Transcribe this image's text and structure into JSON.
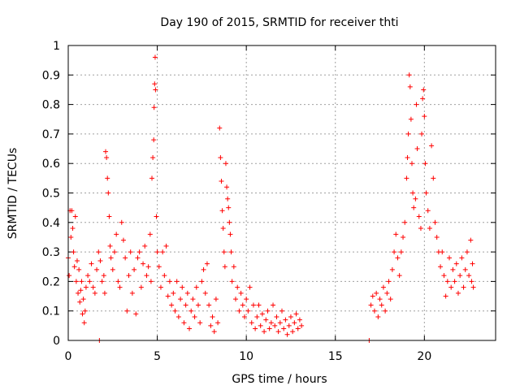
{
  "chart_data": {
    "type": "scatter",
    "title": "Day 190 of 2015, SRMTID for receiver thti",
    "xlabel": "GPS time / hours",
    "ylabel": "SRMTID / TECUs",
    "xlim": [
      0,
      24
    ],
    "ylim": [
      0,
      1
    ],
    "xticks": [
      0,
      5,
      10,
      15,
      20
    ],
    "xtick_labels": [
      "0",
      "5",
      "10",
      "15",
      "20"
    ],
    "yticks": [
      0,
      0.1,
      0.2,
      0.3,
      0.4,
      0.5,
      0.6,
      0.7,
      0.8,
      0.9,
      1
    ],
    "ytick_labels": [
      "0",
      "0.1",
      "0.2",
      "0.3",
      "0.4",
      "0.5",
      "0.6",
      "0.7",
      "0.8",
      "0.9",
      "1"
    ],
    "grid": true,
    "marker": "+",
    "color": "#ff0000",
    "series": [
      {
        "name": "SRMTID",
        "points": [
          [
            0.0,
            0.28
          ],
          [
            0.05,
            0.22
          ],
          [
            0.1,
            0.44
          ],
          [
            0.15,
            0.35
          ],
          [
            0.2,
            0.44
          ],
          [
            0.25,
            0.38
          ],
          [
            0.3,
            0.3
          ],
          [
            0.35,
            0.25
          ],
          [
            0.4,
            0.42
          ],
          [
            0.45,
            0.2
          ],
          [
            0.5,
            0.27
          ],
          [
            0.55,
            0.16
          ],
          [
            0.6,
            0.24
          ],
          [
            0.65,
            0.13
          ],
          [
            0.7,
            0.17
          ],
          [
            0.75,
            0.2
          ],
          [
            0.8,
            0.09
          ],
          [
            0.85,
            0.14
          ],
          [
            0.9,
            0.06
          ],
          [
            0.95,
            0.1
          ],
          [
            1.0,
            0.18
          ],
          [
            1.1,
            0.22
          ],
          [
            1.2,
            0.2
          ],
          [
            1.3,
            0.26
          ],
          [
            1.4,
            0.18
          ],
          [
            1.5,
            0.16
          ],
          [
            1.6,
            0.24
          ],
          [
            1.7,
            0.3
          ],
          [
            1.75,
            0.0
          ],
          [
            1.8,
            0.27
          ],
          [
            1.9,
            0.2
          ],
          [
            2.0,
            0.22
          ],
          [
            2.05,
            0.16
          ],
          [
            2.1,
            0.64
          ],
          [
            2.15,
            0.62
          ],
          [
            2.2,
            0.55
          ],
          [
            2.25,
            0.5
          ],
          [
            2.3,
            0.42
          ],
          [
            2.35,
            0.32
          ],
          [
            2.4,
            0.28
          ],
          [
            2.5,
            0.24
          ],
          [
            2.6,
            0.3
          ],
          [
            2.7,
            0.36
          ],
          [
            2.8,
            0.2
          ],
          [
            2.9,
            0.18
          ],
          [
            3.0,
            0.4
          ],
          [
            3.1,
            0.34
          ],
          [
            3.2,
            0.28
          ],
          [
            3.3,
            0.1
          ],
          [
            3.4,
            0.22
          ],
          [
            3.5,
            0.3
          ],
          [
            3.6,
            0.16
          ],
          [
            3.7,
            0.24
          ],
          [
            3.8,
            0.09
          ],
          [
            3.9,
            0.28
          ],
          [
            4.0,
            0.3
          ],
          [
            4.1,
            0.18
          ],
          [
            4.2,
            0.26
          ],
          [
            4.3,
            0.32
          ],
          [
            4.4,
            0.22
          ],
          [
            4.5,
            0.25
          ],
          [
            4.6,
            0.36
          ],
          [
            4.65,
            0.2
          ],
          [
            4.7,
            0.55
          ],
          [
            4.75,
            0.62
          ],
          [
            4.8,
            0.68
          ],
          [
            4.82,
            0.79
          ],
          [
            4.85,
            0.87
          ],
          [
            4.88,
            0.96
          ],
          [
            4.9,
            0.85
          ],
          [
            4.95,
            0.42
          ],
          [
            5.0,
            0.3
          ],
          [
            5.1,
            0.25
          ],
          [
            5.2,
            0.18
          ],
          [
            5.3,
            0.3
          ],
          [
            5.4,
            0.22
          ],
          [
            5.5,
            0.32
          ],
          [
            5.6,
            0.15
          ],
          [
            5.7,
            0.2
          ],
          [
            5.8,
            0.12
          ],
          [
            5.9,
            0.16
          ],
          [
            6.0,
            0.1
          ],
          [
            6.1,
            0.2
          ],
          [
            6.2,
            0.08
          ],
          [
            6.3,
            0.14
          ],
          [
            6.4,
            0.18
          ],
          [
            6.5,
            0.06
          ],
          [
            6.6,
            0.12
          ],
          [
            6.7,
            0.16
          ],
          [
            6.8,
            0.04
          ],
          [
            6.9,
            0.1
          ],
          [
            7.0,
            0.14
          ],
          [
            7.1,
            0.08
          ],
          [
            7.2,
            0.18
          ],
          [
            7.3,
            0.12
          ],
          [
            7.4,
            0.06
          ],
          [
            7.5,
            0.2
          ],
          [
            7.6,
            0.24
          ],
          [
            7.7,
            0.16
          ],
          [
            7.8,
            0.26
          ],
          [
            7.9,
            0.12
          ],
          [
            8.0,
            0.05
          ],
          [
            8.1,
            0.08
          ],
          [
            8.2,
            0.03
          ],
          [
            8.3,
            0.14
          ],
          [
            8.4,
            0.06
          ],
          [
            8.5,
            0.72
          ],
          [
            8.55,
            0.62
          ],
          [
            8.6,
            0.54
          ],
          [
            8.65,
            0.44
          ],
          [
            8.7,
            0.38
          ],
          [
            8.75,
            0.3
          ],
          [
            8.8,
            0.25
          ],
          [
            8.85,
            0.6
          ],
          [
            8.9,
            0.52
          ],
          [
            8.95,
            0.48
          ],
          [
            9.0,
            0.45
          ],
          [
            9.05,
            0.4
          ],
          [
            9.1,
            0.36
          ],
          [
            9.15,
            0.3
          ],
          [
            9.2,
            0.2
          ],
          [
            9.3,
            0.25
          ],
          [
            9.4,
            0.14
          ],
          [
            9.5,
            0.18
          ],
          [
            9.6,
            0.1
          ],
          [
            9.7,
            0.16
          ],
          [
            9.8,
            0.12
          ],
          [
            9.9,
            0.08
          ],
          [
            10.0,
            0.14
          ],
          [
            10.1,
            0.1
          ],
          [
            10.2,
            0.18
          ],
          [
            10.3,
            0.06
          ],
          [
            10.4,
            0.12
          ],
          [
            10.5,
            0.04
          ],
          [
            10.6,
            0.08
          ],
          [
            10.7,
            0.12
          ],
          [
            10.8,
            0.05
          ],
          [
            10.9,
            0.09
          ],
          [
            11.0,
            0.03
          ],
          [
            11.1,
            0.07
          ],
          [
            11.2,
            0.1
          ],
          [
            11.3,
            0.04
          ],
          [
            11.4,
            0.06
          ],
          [
            11.5,
            0.12
          ],
          [
            11.6,
            0.05
          ],
          [
            11.7,
            0.08
          ],
          [
            11.8,
            0.03
          ],
          [
            11.9,
            0.06
          ],
          [
            12.0,
            0.1
          ],
          [
            12.1,
            0.04
          ],
          [
            12.2,
            0.07
          ],
          [
            12.3,
            0.02
          ],
          [
            12.4,
            0.05
          ],
          [
            12.5,
            0.08
          ],
          [
            12.6,
            0.03
          ],
          [
            12.7,
            0.06
          ],
          [
            12.8,
            0.09
          ],
          [
            12.9,
            0.04
          ],
          [
            13.0,
            0.07
          ],
          [
            13.1,
            0.05
          ],
          [
            16.9,
            0.0
          ],
          [
            17.0,
            0.12
          ],
          [
            17.1,
            0.15
          ],
          [
            17.2,
            0.1
          ],
          [
            17.3,
            0.16
          ],
          [
            17.4,
            0.08
          ],
          [
            17.5,
            0.14
          ],
          [
            17.6,
            0.12
          ],
          [
            17.7,
            0.18
          ],
          [
            17.8,
            0.1
          ],
          [
            17.9,
            0.16
          ],
          [
            18.0,
            0.2
          ],
          [
            18.1,
            0.14
          ],
          [
            18.2,
            0.24
          ],
          [
            18.3,
            0.3
          ],
          [
            18.4,
            0.36
          ],
          [
            18.5,
            0.28
          ],
          [
            18.6,
            0.22
          ],
          [
            18.7,
            0.3
          ],
          [
            18.8,
            0.35
          ],
          [
            18.9,
            0.4
          ],
          [
            19.0,
            0.55
          ],
          [
            19.05,
            0.62
          ],
          [
            19.1,
            0.7
          ],
          [
            19.15,
            0.9
          ],
          [
            19.2,
            0.86
          ],
          [
            19.25,
            0.75
          ],
          [
            19.3,
            0.6
          ],
          [
            19.35,
            0.5
          ],
          [
            19.4,
            0.45
          ],
          [
            19.5,
            0.48
          ],
          [
            19.55,
            0.8
          ],
          [
            19.6,
            0.65
          ],
          [
            19.7,
            0.42
          ],
          [
            19.8,
            0.38
          ],
          [
            19.85,
            0.7
          ],
          [
            19.9,
            0.82
          ],
          [
            19.95,
            0.85
          ],
          [
            20.0,
            0.76
          ],
          [
            20.05,
            0.6
          ],
          [
            20.1,
            0.5
          ],
          [
            20.2,
            0.44
          ],
          [
            20.3,
            0.38
          ],
          [
            20.4,
            0.66
          ],
          [
            20.5,
            0.55
          ],
          [
            20.6,
            0.4
          ],
          [
            20.7,
            0.35
          ],
          [
            20.8,
            0.3
          ],
          [
            20.9,
            0.25
          ],
          [
            21.0,
            0.3
          ],
          [
            21.1,
            0.22
          ],
          [
            21.2,
            0.15
          ],
          [
            21.3,
            0.2
          ],
          [
            21.4,
            0.28
          ],
          [
            21.5,
            0.18
          ],
          [
            21.6,
            0.24
          ],
          [
            21.7,
            0.2
          ],
          [
            21.8,
            0.26
          ],
          [
            21.9,
            0.16
          ],
          [
            22.0,
            0.22
          ],
          [
            22.1,
            0.28
          ],
          [
            22.2,
            0.18
          ],
          [
            22.3,
            0.24
          ],
          [
            22.4,
            0.3
          ],
          [
            22.5,
            0.22
          ],
          [
            22.6,
            0.34
          ],
          [
            22.65,
            0.2
          ],
          [
            22.7,
            0.26
          ],
          [
            22.75,
            0.18
          ]
        ]
      }
    ]
  }
}
